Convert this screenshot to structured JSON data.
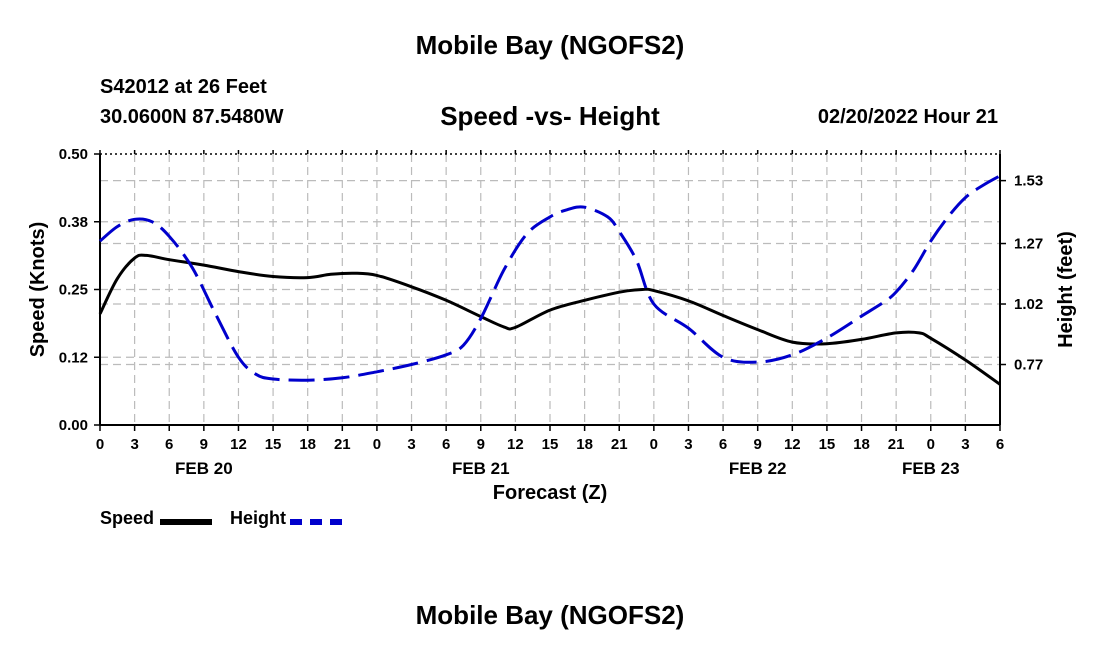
{
  "chart_data": {
    "type": "line",
    "title": "Mobile Bay (NGOFS2)",
    "footer_title": "Mobile Bay (NGOFS2)",
    "station": "S42012 at 26 Feet",
    "location": "30.0600N  87.5480W",
    "subtitle": "Speed -vs- Height",
    "datetime": "02/20/2022 Hour 21",
    "xlabel": "Forecast (Z)",
    "ylabel_left": "Speed (Knots)",
    "ylabel_right": "Height (feet)",
    "x_range_hours": [
      0,
      78
    ],
    "x_tick_labels": [
      "0",
      "3",
      "6",
      "9",
      "12",
      "15",
      "18",
      "21",
      "0",
      "3",
      "6",
      "9",
      "12",
      "15",
      "18",
      "21",
      "0",
      "3",
      "6",
      "9",
      "12",
      "15",
      "18",
      "21",
      "0",
      "3",
      "6"
    ],
    "date_labels": [
      {
        "label": "FEB 20",
        "hour": 9
      },
      {
        "label": "FEB 21",
        "hour": 33
      },
      {
        "label": "FEB 22",
        "hour": 57
      },
      {
        "label": "FEB 23",
        "hour": 72
      }
    ],
    "y_left": {
      "range": [
        0,
        0.5
      ],
      "ticks": [
        0.0,
        0.125,
        0.25,
        0.375,
        0.5
      ],
      "tick_labels": [
        "0.00",
        "0.12",
        "0.25",
        "0.38",
        "0.50"
      ]
    },
    "y_right": {
      "range": [
        0.52,
        1.64
      ],
      "ticks": [
        0.77,
        1.02,
        1.27,
        1.53
      ],
      "tick_labels": [
        "0.77",
        "1.02",
        "1.27",
        "1.53"
      ]
    },
    "grid": true,
    "series": [
      {
        "name": "Speed",
        "axis": "left",
        "color": "#000000",
        "style": "solid",
        "x": [
          0,
          1.5,
          3,
          4,
          6,
          9,
          12,
          15,
          18,
          20,
          22,
          24,
          27,
          30,
          33,
          35,
          36,
          39,
          42,
          45,
          47,
          48,
          51,
          54,
          57,
          60,
          63,
          66,
          69,
          71,
          72,
          75,
          78
        ],
        "values": [
          0.205,
          0.27,
          0.308,
          0.313,
          0.305,
          0.295,
          0.283,
          0.274,
          0.272,
          0.278,
          0.28,
          0.276,
          0.255,
          0.23,
          0.2,
          0.181,
          0.18,
          0.212,
          0.23,
          0.245,
          0.25,
          0.248,
          0.229,
          0.202,
          0.176,
          0.153,
          0.15,
          0.158,
          0.17,
          0.17,
          0.16,
          0.12,
          0.075
        ]
      },
      {
        "name": "Height",
        "axis": "right",
        "color": "#0000cc",
        "style": "dashed",
        "x": [
          0,
          1.5,
          3,
          4.5,
          6,
          8,
          10,
          12,
          13.5,
          15,
          18,
          21,
          24,
          27,
          30,
          31.5,
          33,
          35,
          37,
          39,
          40.5,
          42,
          44,
          45,
          46.5,
          48,
          51,
          54,
          57,
          60,
          63,
          66,
          68,
          69,
          70.5,
          72,
          73.5,
          75,
          76.5,
          78
        ],
        "values": [
          1.28,
          1.34,
          1.37,
          1.36,
          1.3,
          1.17,
          0.98,
          0.8,
          0.73,
          0.71,
          0.705,
          0.715,
          0.74,
          0.77,
          0.81,
          0.85,
          0.96,
          1.16,
          1.31,
          1.38,
          1.41,
          1.42,
          1.38,
          1.32,
          1.2,
          1.02,
          0.92,
          0.8,
          0.78,
          0.81,
          0.88,
          0.97,
          1.03,
          1.07,
          1.16,
          1.28,
          1.38,
          1.46,
          1.51,
          1.55
        ]
      }
    ]
  },
  "legend": {
    "speed_label": "Speed",
    "height_label": "Height",
    "speed_color": "#000000",
    "height_color": "#0000cc"
  }
}
